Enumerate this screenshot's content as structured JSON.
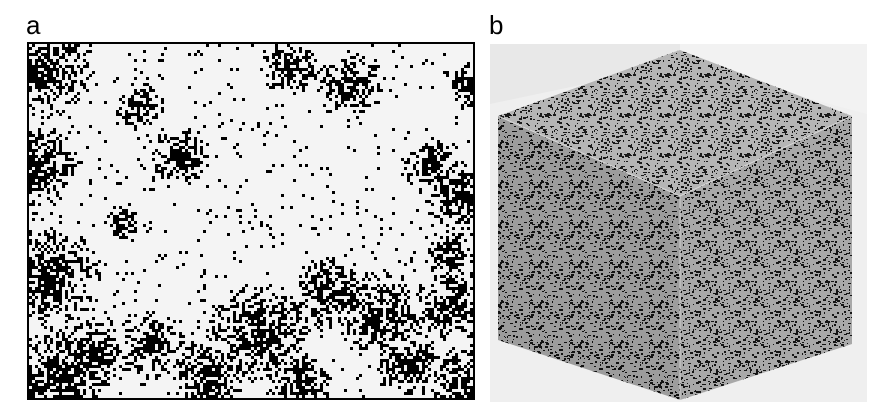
{
  "figure": {
    "panels": [
      {
        "label": "a",
        "content": "binary-microstructure-slice"
      },
      {
        "label": "b",
        "content": "3d-reconstructed-cube"
      }
    ]
  },
  "colors": {
    "solid": "#000000",
    "pore": "#f4f4f4",
    "cube_top": "#b5b5b5",
    "cube_left": "#9c9c9c",
    "cube_right": "#a8a8a8",
    "background_b": "#efefef"
  }
}
